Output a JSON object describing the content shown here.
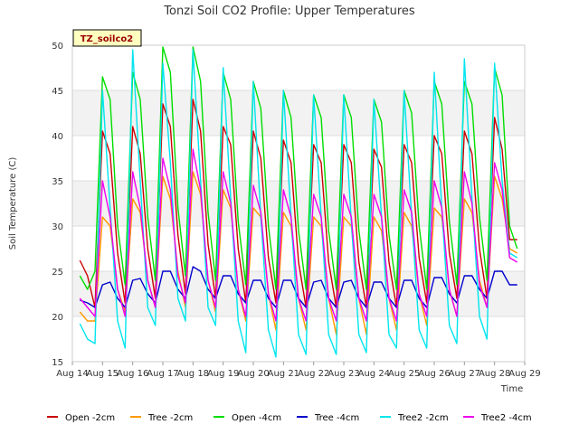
{
  "chart_data": {
    "type": "line",
    "title": "Tonzi Soil CO2 Profile: Upper Temperatures",
    "xlabel": "Time",
    "ylabel": "Soil Temperature (C)",
    "badge": "TZ_soilco2",
    "xlim": [
      14,
      29
    ],
    "ylim": [
      15,
      50
    ],
    "x_ticks": [
      "Aug 14",
      "Aug 15",
      "Aug 16",
      "Aug 17",
      "Aug 18",
      "Aug 19",
      "Aug 20",
      "Aug 21",
      "Aug 22",
      "Aug 23",
      "Aug 24",
      "Aug 25",
      "Aug 26",
      "Aug 27",
      "Aug 28",
      "Aug 29"
    ],
    "y_ticks": [
      15,
      20,
      25,
      30,
      35,
      40,
      45,
      50
    ],
    "grid": true,
    "legend_position": "bottom",
    "series": [
      {
        "name": "Open -2cm",
        "color": "#cc0000",
        "x": [
          14.25,
          14.5,
          14.75,
          15.0,
          15.25,
          15.5,
          15.75,
          16.0,
          16.25,
          16.5,
          16.75,
          17.0,
          17.25,
          17.5,
          17.75,
          18.0,
          18.25,
          18.5,
          18.75,
          19.0,
          19.25,
          19.5,
          19.75,
          20.0,
          20.25,
          20.5,
          20.75,
          21.0,
          21.25,
          21.5,
          21.75,
          22.0,
          22.25,
          22.5,
          22.75,
          23.0,
          23.25,
          23.5,
          23.75,
          24.0,
          24.25,
          24.5,
          24.75,
          25.0,
          25.25,
          25.5,
          25.75,
          26.0,
          26.25,
          26.5,
          26.75,
          27.0,
          27.25,
          27.5,
          27.75,
          28.0,
          28.25,
          28.5,
          28.75
        ],
        "y": [
          26.2,
          24.5,
          21.0,
          40.5,
          38.0,
          27.0,
          21.5,
          41.0,
          38.0,
          27.5,
          22.0,
          43.5,
          41.0,
          29.0,
          22.5,
          44.0,
          40.5,
          28.0,
          22.0,
          41.0,
          39.0,
          27.5,
          21.5,
          40.5,
          37.5,
          26.5,
          21.5,
          39.5,
          37.0,
          26.0,
          21.0,
          39.0,
          37.0,
          26.0,
          21.0,
          39.0,
          37.0,
          26.0,
          21.0,
          38.5,
          36.5,
          26.0,
          21.0,
          39.0,
          37.0,
          26.5,
          21.5,
          40.0,
          38.0,
          27.0,
          22.0,
          40.5,
          38.0,
          27.5,
          22.0,
          42.0,
          38.5,
          28.5,
          28.5
        ]
      },
      {
        "name": "Tree -2cm",
        "color": "#ff9900",
        "x": [
          14.25,
          14.5,
          14.75,
          15.0,
          15.25,
          15.5,
          15.75,
          16.0,
          16.25,
          16.5,
          16.75,
          17.0,
          17.25,
          17.5,
          17.75,
          18.0,
          18.25,
          18.5,
          18.75,
          19.0,
          19.25,
          19.5,
          19.75,
          20.0,
          20.25,
          20.5,
          20.75,
          21.0,
          21.25,
          21.5,
          21.75,
          22.0,
          22.25,
          22.5,
          22.75,
          23.0,
          23.25,
          23.5,
          23.75,
          24.0,
          24.25,
          24.5,
          24.75,
          25.0,
          25.25,
          25.5,
          25.75,
          26.0,
          26.25,
          26.5,
          26.75,
          27.0,
          27.25,
          27.5,
          27.75,
          28.0,
          28.25,
          28.5,
          28.75
        ],
        "y": [
          20.5,
          19.5,
          19.5,
          31.0,
          30.0,
          23.0,
          20.5,
          33.0,
          31.5,
          24.0,
          21.0,
          35.5,
          33.0,
          25.0,
          21.0,
          36.0,
          33.5,
          24.0,
          20.5,
          34.0,
          32.0,
          23.0,
          19.5,
          32.0,
          31.0,
          22.5,
          18.5,
          31.5,
          30.0,
          22.0,
          18.5,
          31.0,
          30.0,
          22.0,
          18.0,
          31.0,
          30.0,
          22.0,
          18.0,
          31.0,
          29.5,
          22.0,
          18.5,
          31.5,
          30.0,
          22.5,
          19.0,
          32.0,
          31.0,
          23.0,
          20.0,
          33.0,
          31.5,
          24.0,
          21.0,
          35.5,
          33.0,
          27.5,
          27.0
        ]
      },
      {
        "name": "Open -4cm",
        "color": "#00dd00",
        "x": [
          14.25,
          14.5,
          14.75,
          15.0,
          15.25,
          15.5,
          15.75,
          16.0,
          16.25,
          16.5,
          16.75,
          17.0,
          17.25,
          17.5,
          17.75,
          18.0,
          18.25,
          18.5,
          18.75,
          19.0,
          19.25,
          19.5,
          19.75,
          20.0,
          20.25,
          20.5,
          20.75,
          21.0,
          21.25,
          21.5,
          21.75,
          22.0,
          22.25,
          22.5,
          22.75,
          23.0,
          23.25,
          23.5,
          23.75,
          24.0,
          24.25,
          24.5,
          24.75,
          25.0,
          25.25,
          25.5,
          25.75,
          26.0,
          26.25,
          26.5,
          26.75,
          27.0,
          27.25,
          27.5,
          27.75,
          28.0,
          28.25,
          28.5,
          28.75
        ],
        "y": [
          24.5,
          23.0,
          25.0,
          46.5,
          44.0,
          30.0,
          23.5,
          47.0,
          44.0,
          31.0,
          24.0,
          49.8,
          47.0,
          32.0,
          24.5,
          49.8,
          46.0,
          31.5,
          24.0,
          47.0,
          44.0,
          30.5,
          23.5,
          46.0,
          43.0,
          30.0,
          23.0,
          45.0,
          42.0,
          29.5,
          23.0,
          44.5,
          42.0,
          29.5,
          23.0,
          44.5,
          42.0,
          29.5,
          23.0,
          44.0,
          41.5,
          29.0,
          23.0,
          45.0,
          42.5,
          30.0,
          23.0,
          46.0,
          43.5,
          30.5,
          23.5,
          46.0,
          43.5,
          31.0,
          24.0,
          47.5,
          44.5,
          30.0,
          27.5
        ]
      },
      {
        "name": "Tree -4cm",
        "color": "#0000cc",
        "x": [
          14.25,
          14.5,
          14.75,
          15.0,
          15.25,
          15.5,
          15.75,
          16.0,
          16.25,
          16.5,
          16.75,
          17.0,
          17.25,
          17.5,
          17.75,
          18.0,
          18.25,
          18.5,
          18.75,
          19.0,
          19.25,
          19.5,
          19.75,
          20.0,
          20.25,
          20.5,
          20.75,
          21.0,
          21.25,
          21.5,
          21.75,
          22.0,
          22.25,
          22.5,
          22.75,
          23.0,
          23.25,
          23.5,
          23.75,
          24.0,
          24.25,
          24.5,
          24.75,
          25.0,
          25.25,
          25.5,
          25.75,
          26.0,
          26.25,
          26.5,
          26.75,
          27.0,
          27.25,
          27.5,
          27.75,
          28.0,
          28.25,
          28.5,
          28.75
        ],
        "y": [
          21.8,
          21.5,
          21.0,
          23.5,
          23.8,
          22.0,
          21.0,
          24.0,
          24.2,
          22.5,
          21.5,
          25.0,
          25.0,
          23.0,
          22.0,
          25.5,
          25.0,
          23.0,
          22.0,
          24.5,
          24.5,
          22.5,
          21.5,
          24.0,
          24.0,
          22.0,
          21.0,
          24.0,
          24.0,
          22.0,
          21.0,
          23.8,
          24.0,
          22.0,
          21.0,
          23.8,
          24.0,
          22.0,
          21.0,
          23.8,
          23.8,
          22.0,
          21.0,
          24.0,
          24.0,
          22.0,
          21.0,
          24.3,
          24.3,
          22.5,
          21.5,
          24.5,
          24.5,
          23.0,
          22.0,
          25.0,
          25.0,
          23.5,
          23.5
        ]
      },
      {
        "name": "Tree2 -2cm",
        "color": "#00e5ee",
        "x": [
          14.25,
          14.5,
          14.75,
          15.0,
          15.25,
          15.5,
          15.75,
          16.0,
          16.25,
          16.5,
          16.75,
          17.0,
          17.25,
          17.5,
          17.75,
          18.0,
          18.25,
          18.5,
          18.75,
          19.0,
          19.25,
          19.5,
          19.75,
          20.0,
          20.25,
          20.5,
          20.75,
          21.0,
          21.25,
          21.5,
          21.75,
          22.0,
          22.25,
          22.5,
          22.75,
          23.0,
          23.25,
          23.5,
          23.75,
          24.0,
          24.25,
          24.5,
          24.75,
          25.0,
          25.25,
          25.5,
          25.75,
          26.0,
          26.25,
          26.5,
          26.75,
          27.0,
          27.25,
          27.5,
          27.75,
          28.0,
          28.25,
          28.5,
          28.75
        ],
        "y": [
          19.2,
          17.5,
          17.0,
          45.0,
          32.0,
          19.5,
          16.5,
          49.5,
          35.0,
          21.0,
          19.0,
          48.0,
          37.0,
          22.0,
          19.5,
          49.5,
          35.0,
          21.0,
          19.0,
          47.5,
          33.0,
          19.5,
          16.0,
          46.0,
          31.0,
          18.5,
          15.5,
          45.0,
          31.0,
          18.0,
          15.8,
          44.5,
          31.0,
          18.0,
          15.8,
          44.5,
          30.5,
          18.0,
          16.0,
          44.0,
          31.0,
          18.0,
          16.5,
          45.0,
          31.0,
          18.5,
          16.5,
          47.0,
          32.0,
          19.0,
          17.0,
          48.5,
          33.0,
          20.0,
          17.5,
          48.0,
          35.0,
          27.0,
          26.5
        ]
      },
      {
        "name": "Tree2 -4cm",
        "color": "#ee00ee",
        "x": [
          14.25,
          14.5,
          14.75,
          15.0,
          15.25,
          15.5,
          15.75,
          16.0,
          16.25,
          16.5,
          16.75,
          17.0,
          17.25,
          17.5,
          17.75,
          18.0,
          18.25,
          18.5,
          18.75,
          19.0,
          19.25,
          19.5,
          19.75,
          20.0,
          20.25,
          20.5,
          20.75,
          21.0,
          21.25,
          21.5,
          21.75,
          22.0,
          22.25,
          22.5,
          22.75,
          23.0,
          23.25,
          23.5,
          23.75,
          24.0,
          24.25,
          24.5,
          24.75,
          25.0,
          25.25,
          25.5,
          25.75,
          26.0,
          26.25,
          26.5,
          26.75,
          27.0,
          27.25,
          27.5,
          27.75,
          28.0,
          28.25,
          28.5,
          28.75
        ],
        "y": [
          22.0,
          21.0,
          20.0,
          35.0,
          31.0,
          23.0,
          20.0,
          36.0,
          32.0,
          24.0,
          21.0,
          37.5,
          34.0,
          24.5,
          21.5,
          38.5,
          34.0,
          24.0,
          21.0,
          36.0,
          32.5,
          23.0,
          20.0,
          34.5,
          31.5,
          22.5,
          19.5,
          34.0,
          31.0,
          22.0,
          19.5,
          33.5,
          31.0,
          22.0,
          19.5,
          33.5,
          31.0,
          22.0,
          19.5,
          33.5,
          31.0,
          22.0,
          19.5,
          34.0,
          31.5,
          22.5,
          20.0,
          35.0,
          32.0,
          23.0,
          20.0,
          36.0,
          32.5,
          23.5,
          21.0,
          37.0,
          34.0,
          26.5,
          26.0
        ]
      }
    ]
  }
}
